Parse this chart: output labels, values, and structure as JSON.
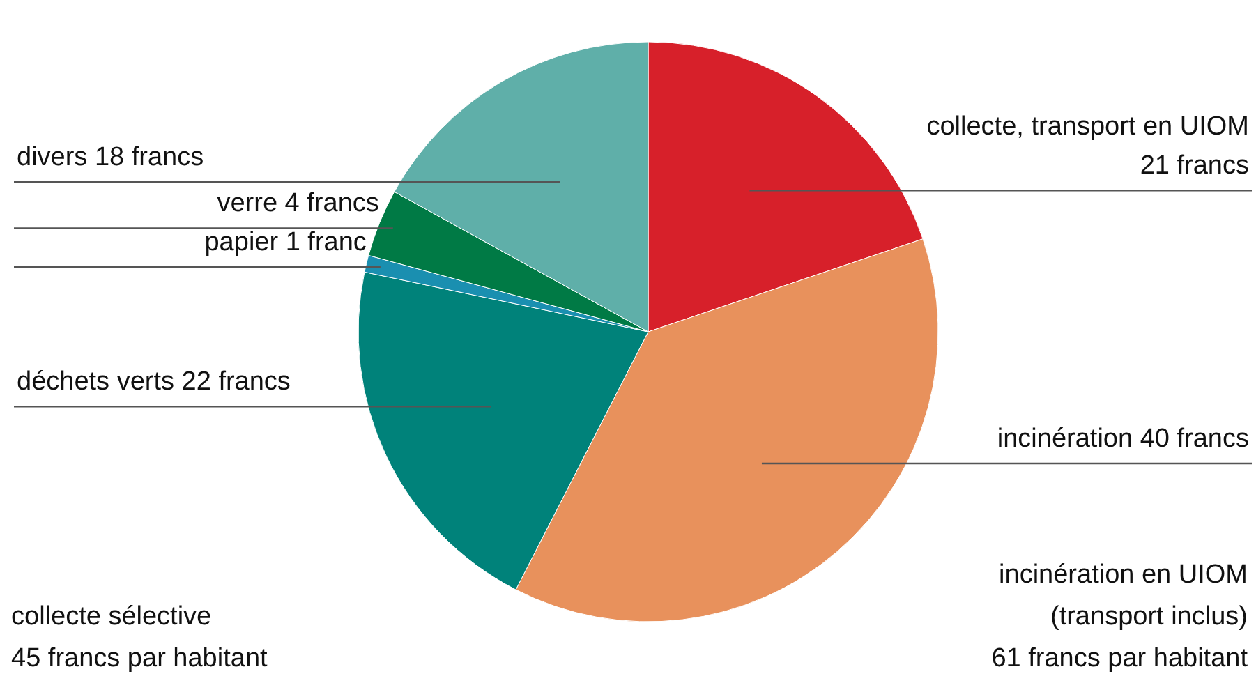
{
  "chart_data": {
    "type": "pie",
    "categories": [
      "collecte, transport en UIOM",
      "incinération",
      "déchets verts",
      "papier",
      "verre",
      "divers"
    ],
    "values": [
      21,
      40,
      22,
      1,
      4,
      18
    ],
    "value_labels": [
      "21 francs",
      "40 francs",
      "22 francs",
      "1 franc",
      "4 francs",
      "18 francs"
    ],
    "colors": [
      "#d7202a",
      "#e8915c",
      "#00827a",
      "#1a8fb0",
      "#007a45",
      "#5fafa9"
    ],
    "legend": false,
    "annotations": [
      "collecte sélective\n45 francs par habitant",
      "incinération en UIOM\n(transport inclus)\n61 francs par habitant"
    ]
  }
}
